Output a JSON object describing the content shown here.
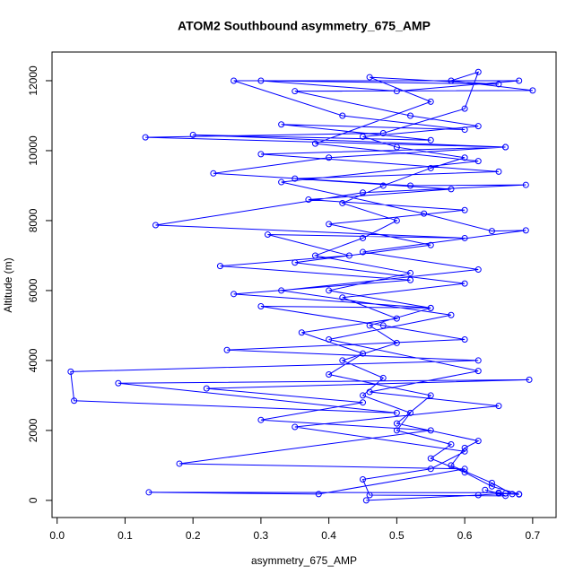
{
  "chart_data": {
    "type": "line",
    "title": "ATOM2 Southbound asymmetry_675_AMP",
    "x_label": "asymmetry_675_AMP",
    "y_label": "Altitude (m)",
    "xlim": [
      -0.0075,
      0.7345
    ],
    "ylim": [
      -490,
      12820
    ],
    "xticks": [
      {
        "value": 0,
        "label": "0.0"
      },
      0.1,
      0.2,
      0.3,
      0.4,
      0.5,
      0.6,
      0.7
    ],
    "yticks": [
      0,
      2000,
      4000,
      6000,
      8000,
      10000,
      12000
    ],
    "markers": true,
    "x": [
      0.455,
      0.62,
      0.66,
      0.68,
      0.64,
      0.6,
      0.55,
      0.58,
      0.5,
      0.52,
      0.45,
      0.48,
      0.42,
      0.5,
      0.46,
      0.55,
      0.4,
      0.52,
      0.38,
      0.45,
      0.5,
      0.42,
      0.48,
      0.55,
      0.6,
      0.5,
      0.45,
      0.62,
      0.52,
      0.35,
      0.7,
      0.58,
      0.62,
      0.6,
      0.48,
      0.13,
      0.66,
      0.4,
      0.23,
      0.52,
      0.69,
      0.45,
      0.145,
      0.6,
      0.31,
      0.43,
      0.24,
      0.52,
      0.26,
      0.55,
      0.3,
      0.48,
      0.6,
      0.25,
      0.62,
      0.02,
      0.025,
      0.5,
      0.09,
      0.695,
      0.22,
      0.45,
      0.3,
      0.55,
      0.18,
      0.6,
      0.385,
      0.135,
      0.65,
      0.67,
      0.64,
      0.58,
      0.6,
      0.62,
      0.5,
      0.55,
      0.4,
      0.45,
      0.36,
      0.5,
      0.42,
      0.6,
      0.35,
      0.55,
      0.4,
      0.6,
      0.37,
      0.58,
      0.35,
      0.65,
      0.3,
      0.66,
      0.2,
      0.55,
      0.33,
      0.6,
      0.42,
      0.26,
      0.68,
      0.5,
      0.3,
      0.65,
      0.46,
      0.55,
      0.38,
      0.62,
      0.33,
      0.54,
      0.64,
      0.69,
      0.45,
      0.62,
      0.33,
      0.58,
      0.4,
      0.62,
      0.46,
      0.65,
      0.35,
      0.6,
      0.55,
      0.45,
      0.46,
      0.66,
      0.63,
      0.65,
      0.68
    ],
    "series": [
      {
        "color": "#0000ff",
        "values": [
          0,
          150,
          200,
          180,
          400,
          800,
          1200,
          1600,
          2000,
          2500,
          3000,
          3500,
          4000,
          4500,
          5000,
          5500,
          6000,
          6500,
          7000,
          7500,
          8000,
          8500,
          9000,
          9500,
          9800,
          10100,
          10400,
          10700,
          11000,
          11700,
          11720,
          12000,
          12250,
          11200,
          10500,
          10380,
          10100,
          9800,
          9350,
          9000,
          9020,
          8800,
          7870,
          7500,
          7600,
          7000,
          6700,
          6300,
          5900,
          5500,
          5550,
          5000,
          4600,
          4300,
          4000,
          3680,
          2850,
          2500,
          3350,
          3450,
          3200,
          2800,
          2300,
          2000,
          1050,
          900,
          180,
          230,
          220,
          180,
          500,
          1000,
          1500,
          1700,
          2200,
          3000,
          3600,
          4200,
          4800,
          5200,
          5800,
          6200,
          6800,
          7300,
          7900,
          8300,
          8600,
          8900,
          9200,
          9400,
          9900,
          10100,
          10450,
          10300,
          10750,
          10600,
          11000,
          12000,
          12000,
          11700,
          12000,
          11900,
          12100,
          11400,
          10200,
          9700,
          9100,
          8200,
          7700,
          7720,
          7100,
          6600,
          6000,
          5300,
          4600,
          3700,
          3100,
          2700,
          2100,
          1400,
          900,
          600,
          150,
          130,
          300,
          200,
          170
        ]
      }
    ]
  }
}
